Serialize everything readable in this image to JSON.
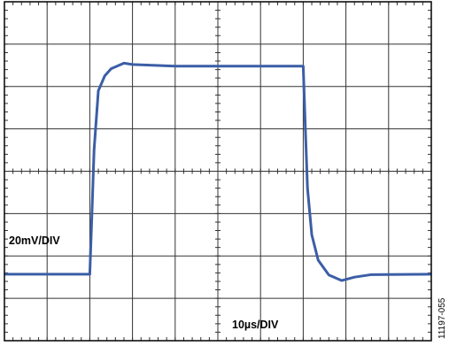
{
  "chart_data": {
    "type": "line",
    "annotations": [
      "20mV/DIV",
      "10µs/DIV"
    ],
    "figure_id": "11197-055",
    "x": [
      0,
      2.0,
      2.05,
      2.1,
      2.2,
      2.35,
      2.5,
      2.8,
      3.0,
      4,
      5,
      6,
      7.0,
      7.05,
      7.1,
      7.2,
      7.35,
      7.6,
      7.9,
      8.2,
      8.6,
      10
    ],
    "series": [
      {
        "color": "#3b5ea6",
        "values": [
          1.57,
          1.57,
          3.0,
          4.5,
          5.9,
          6.25,
          6.42,
          6.55,
          6.52,
          6.48,
          6.48,
          6.48,
          6.48,
          5.0,
          3.6,
          2.5,
          1.9,
          1.55,
          1.42,
          1.5,
          1.56,
          1.57
        ]
      }
    ],
    "xlim": [
      0,
      10
    ],
    "ylim": [
      0,
      8
    ],
    "xticks": [
      0,
      1,
      2,
      3,
      4,
      5,
      6,
      7,
      8,
      9,
      10
    ],
    "yticks": [
      0,
      1,
      2,
      3,
      4,
      5,
      6,
      7,
      8
    ],
    "grid": true
  }
}
